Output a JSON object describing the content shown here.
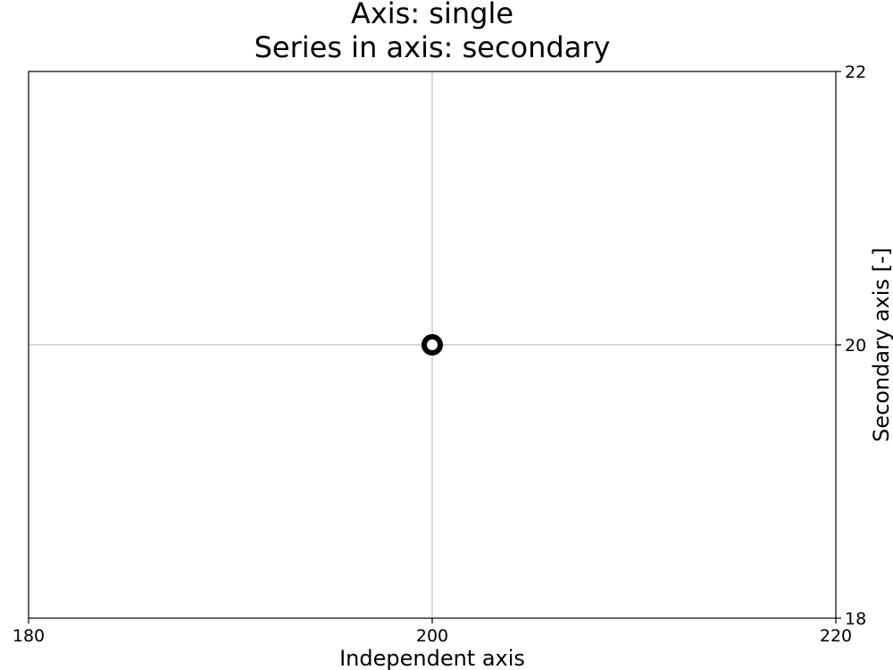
{
  "chart_data": {
    "type": "scatter",
    "title_lines": [
      "Axis: single",
      "Series in axis: secondary"
    ],
    "xlabel": "Independent axis",
    "ylabel": "Secondary axis [-]",
    "y_axis_side": "right",
    "xlim": [
      180,
      220
    ],
    "ylim": [
      18,
      22
    ],
    "x_ticks": [
      180,
      200,
      220
    ],
    "y_ticks": [
      18,
      20,
      22
    ],
    "grid": true,
    "series": [
      {
        "x": [
          200
        ],
        "y": [
          20
        ],
        "marker": "ring",
        "color": "#000000",
        "fill": "#ffffff"
      }
    ]
  }
}
